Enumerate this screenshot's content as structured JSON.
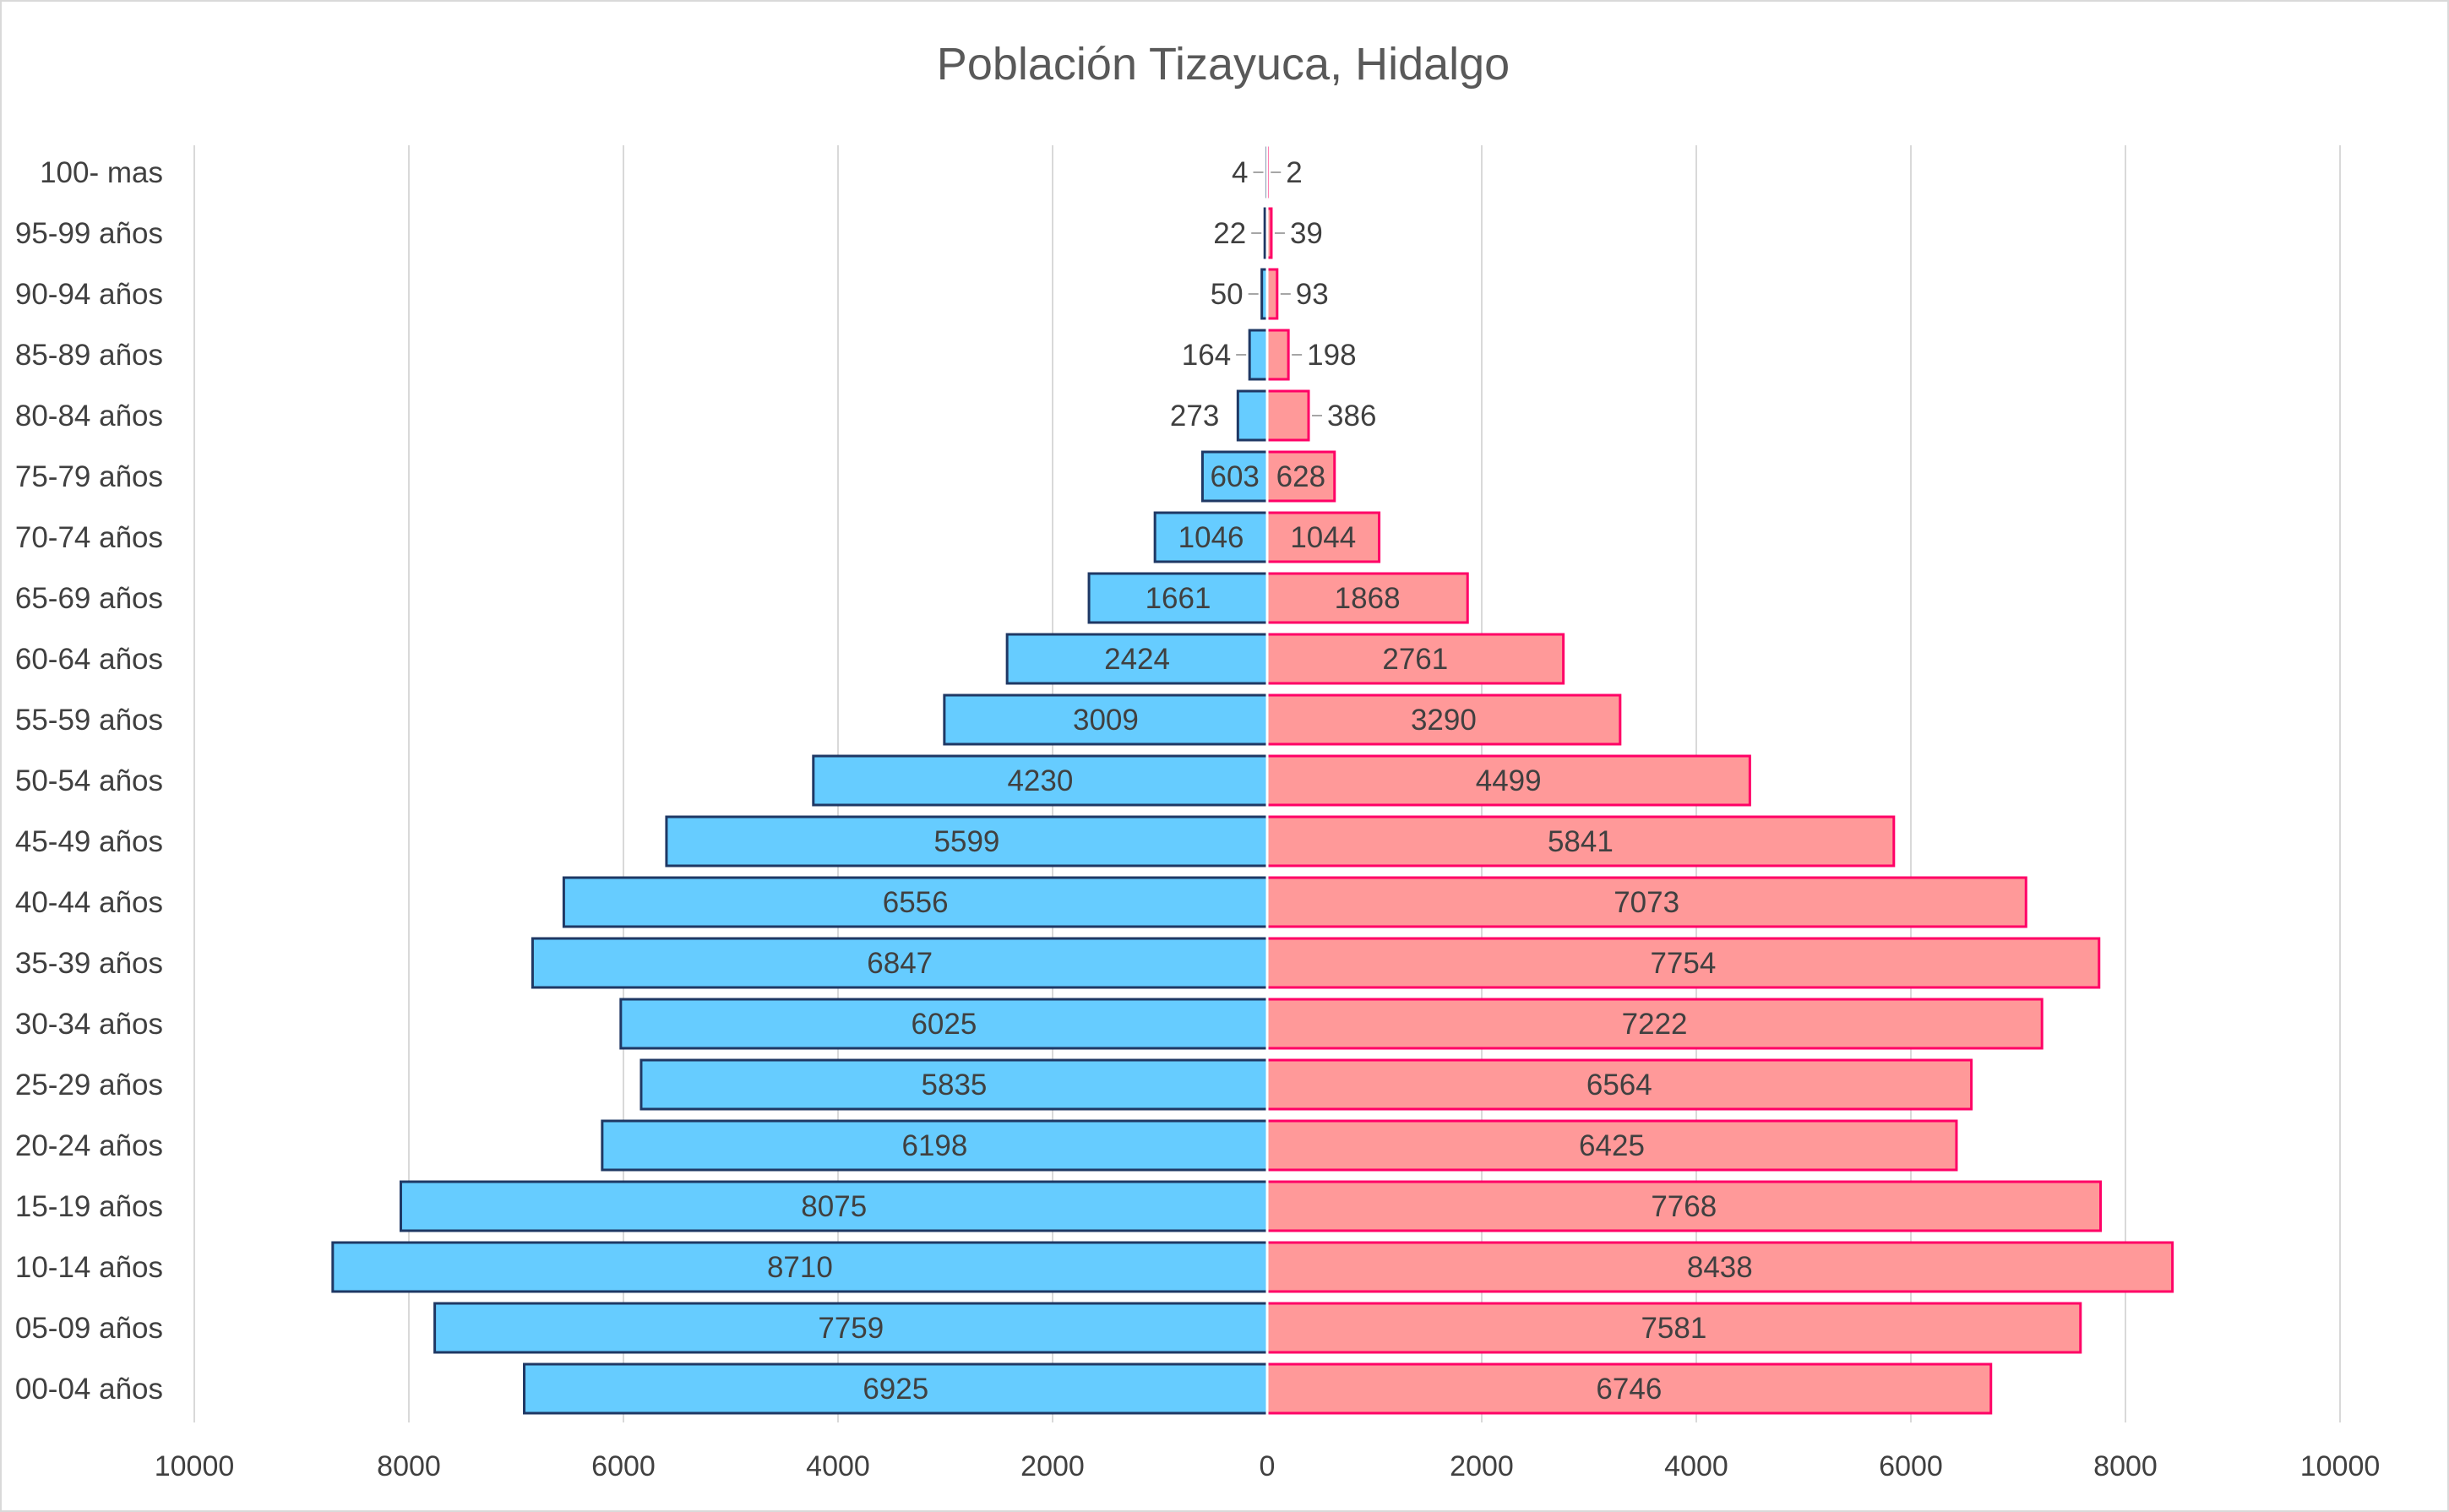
{
  "chart_data": {
    "type": "bar",
    "orientation": "horizontal",
    "subtype": "population-pyramid",
    "title": "Población Tizayuca, Hidalgo",
    "categories": [
      "100- mas",
      "95-99 años",
      "90-94 años",
      "85-89 años",
      "80-84 años",
      "75-79 años",
      "70-74 años",
      "65-69 años",
      "60-64 años",
      "55-59 años",
      "50-54 años",
      "45-49 años",
      "40-44 años",
      "35-39 años",
      "30-34 años",
      "25-29 años",
      "20-24 años",
      "15-19 años",
      "10-14 años",
      "05-09 años",
      "00-04 años"
    ],
    "series": [
      {
        "side": "left",
        "color": "#66ccff",
        "border": "#1f3864",
        "values": [
          4,
          22,
          50,
          164,
          273,
          603,
          1046,
          1661,
          2424,
          3009,
          4230,
          5599,
          6556,
          6847,
          6025,
          5835,
          6198,
          8075,
          8710,
          7759,
          6925
        ]
      },
      {
        "side": "right",
        "color": "#ff9999",
        "border": "#ff0066",
        "values": [
          2,
          39,
          93,
          198,
          386,
          628,
          1044,
          1868,
          2761,
          3290,
          4499,
          5841,
          7073,
          7754,
          7222,
          6564,
          6425,
          7768,
          8438,
          7581,
          6746
        ]
      }
    ],
    "x_ticks": [
      "10000",
      "8000",
      "6000",
      "4000",
      "2000",
      "0",
      "2000",
      "4000",
      "6000",
      "8000",
      "10000"
    ],
    "xlim": [
      -10000,
      10000
    ],
    "grid": true,
    "legend": "none"
  }
}
